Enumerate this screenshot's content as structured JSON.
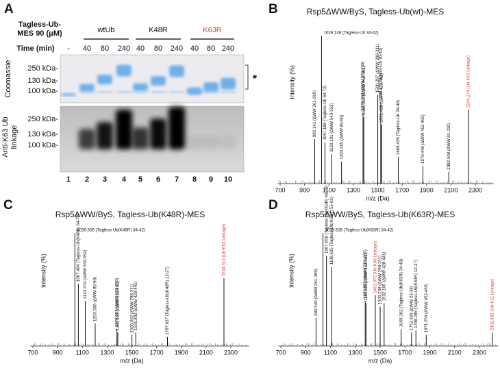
{
  "panel_a": {
    "letter": "A",
    "sample_label": [
      "Tagless-Ub-",
      "MES 90 (μM)"
    ],
    "groups": [
      {
        "name": "wtUb",
        "color": "#111111"
      },
      {
        "name": "K48R",
        "color": "#111111"
      },
      {
        "name": "K63R",
        "color": "#e8383d"
      }
    ],
    "time_label": "Time (min)",
    "times": [
      "-",
      "40",
      "80",
      "240",
      "40",
      "80",
      "240",
      "40",
      "80",
      "240"
    ],
    "coomassie_label": "Coomassie",
    "coomassie_markers": [
      "250 kDa-",
      "130 kDa-",
      "100 kDa-"
    ],
    "blot_label": [
      "Anti-K63 Ub",
      "linkage"
    ],
    "blot_markers": [
      "250 kDa-",
      "130 kDa-",
      "100 kDa-"
    ],
    "asterisk": "*",
    "lanes": [
      "1",
      "2",
      "3",
      "4",
      "5",
      "6",
      "7",
      "8",
      "9",
      "10"
    ]
  },
  "chart_data": [
    {
      "type": "spectrum",
      "letter": "B",
      "title": "Rsp5ΔWW/ByS, Tagless-Ub(wt)-MES",
      "xlabel": "m/z (Da)",
      "ylabel": "Intensity (%)",
      "xlim": [
        680,
        2450
      ],
      "xticks": [
        700,
        900,
        1100,
        1300,
        1500,
        1700,
        1900,
        2100,
        2300
      ],
      "ylim": [
        0,
        100
      ],
      "peaks": [
        {
          "x": 983.141,
          "height": 30,
          "label": "983.141 (ΔWW 361-369)"
        },
        {
          "x": 1039.148,
          "height": 100,
          "label": "1039.148 (Tagless-Ub 34-42)"
        },
        {
          "x": 1067.188,
          "height": 28,
          "label": "1067.188 (Tagless-Ub 64-72)"
        },
        {
          "x": 1123.191,
          "height": 20,
          "label": "1123.191 (ΔWW 543-552)"
        },
        {
          "x": 1203.265,
          "height": 15,
          "label": "1203.265 (ΔWW 80-90)"
        },
        {
          "x": 1379.29,
          "height": 48,
          "label": "1379.290 (ΔWW 220-230)"
        },
        {
          "x": 1386.31,
          "height": 45,
          "label": "1386.310 (ΔWW 452-461)"
        },
        {
          "x": 1500.297,
          "height": 60,
          "label": "1500.297 (ΔWW 298-311)"
        },
        {
          "x": 1524.47,
          "height": 55,
          "label": "1524.47 (Tagless-Ub 30-42)"
        },
        {
          "x": 1531.428,
          "height": 40,
          "label": "1531.428 (ΔWW 428-441)"
        },
        {
          "x": 1668.439,
          "height": 18,
          "label": "1668.439 (Tagless-Ub 34-48)"
        },
        {
          "x": 1870.448,
          "height": 12,
          "label": "1870.448 (ΔWW 452-465)"
        },
        {
          "x": 2082.508,
          "height": 8,
          "label": "2082.508 (ΔWW 91-110)"
        },
        {
          "x": 2244.274,
          "height": 50,
          "label": "2244.274 (Ub-K63 Linkage)",
          "color": "#e8383d"
        }
      ]
    },
    {
      "type": "spectrum",
      "letter": "C",
      "title": "Rsp5ΔWW/ByS, Tagless-Ub(K48R)-MES",
      "xlabel": "m/z (Da)",
      "ylabel": "Intensity (%)",
      "xlim": [
        680,
        2450
      ],
      "xticks": [
        700,
        900,
        1100,
        1300,
        1500,
        1700,
        1900,
        2100,
        2300
      ],
      "ylim": [
        0,
        100
      ],
      "peaks": [
        {
          "x": 1039.535,
          "height": 100,
          "label": "1039.535 (Tagless-Ub(K48R) 34-42)"
        },
        {
          "x": 1067.484,
          "height": 55,
          "label": "1067.484 (Tagless-Ub(K48R) 64-72)"
        },
        {
          "x": 1123.474,
          "height": 40,
          "label": "1123.474 (ΔWW 543-552)"
        },
        {
          "x": 1203.58,
          "height": 20,
          "label": "1203.580 (ΔWW 80-90)"
        },
        {
          "x": 1379.257,
          "height": 15,
          "label": "1379.257 (ΔWW 220-230)"
        },
        {
          "x": 1386.65,
          "height": 12,
          "label": "1386.650 (ΔWW 452-461)"
        },
        {
          "x": 1500.662,
          "height": 10,
          "label": "1500.662 (ΔWW 298-311)"
        },
        {
          "x": 1531.802,
          "height": 12,
          "label": "1531.802 (ΔWW 428-441)"
        },
        {
          "x": 1787.937,
          "height": 8,
          "label": "1787.937 (Tagless-Ub(K48R) 12-27)"
        },
        {
          "x": 2244.51,
          "height": 60,
          "label": "2244.510 (Ub-K63 Linkage)",
          "color": "#e8383d"
        }
      ]
    },
    {
      "type": "spectrum",
      "letter": "D",
      "title": "Rsp5ΔWW/ByS, Tagless-Ub(K63R)-MES",
      "xlabel": "m/z (Da)",
      "ylabel": "Intensity (%)",
      "xlim": [
        680,
        2450
      ],
      "xticks": [
        700,
        900,
        1100,
        1300,
        1500,
        1700,
        1900,
        2100,
        2300
      ],
      "ylim": [
        0,
        100
      ],
      "peaks": [
        {
          "x": 983.54,
          "height": 25,
          "label": "983.540 (ΔWW 361-369)"
        },
        {
          "x": 1039.535,
          "height": 100,
          "label": "1039.535 (Tagless-Ub(K63R) 34-42)"
        },
        {
          "x": 1067.658,
          "height": 80,
          "label": "1067.658 (Tagless-Ub(K63R) 64-72)"
        },
        {
          "x": 1109.625,
          "height": 70,
          "label": "1109.625 (Tagless-Ub(K63R) 55-63)"
        },
        {
          "x": 1379.857,
          "height": 40,
          "label": "1379.857 (ΔWW 220-230)"
        },
        {
          "x": 1386.306,
          "height": 38,
          "label": "1386.306(ΔWW 452-461)"
        },
        {
          "x": 1461.073,
          "height": 45,
          "label": "1461.073 (Ub-K48 Linkage)",
          "color": "#e8383d"
        },
        {
          "x": 1500.238,
          "height": 35,
          "label": "1500.238 (ΔWW 298-311)"
        },
        {
          "x": 1532.105,
          "height": 38,
          "label": "1532.105 (ΔWW 428-441)"
        },
        {
          "x": 1669.162,
          "height": 15,
          "label": "1669.162 (Tagless-Ub(K63R) 34-48)"
        },
        {
          "x": 1752.369,
          "height": 12,
          "label": "1752.369 (ΔWW 23-38)"
        },
        {
          "x": 1788.286,
          "height": 14,
          "label": "1788.286 (Tagless-Ub(K63R) 12-27)"
        },
        {
          "x": 1871.25,
          "height": 10,
          "label": "1871.250 (ΔWW 452-465)"
        },
        {
          "x": 2402.882,
          "height": 12,
          "label": "2402.882 (Ub-K11 Linkage)",
          "color": "#e8383d"
        }
      ]
    }
  ]
}
